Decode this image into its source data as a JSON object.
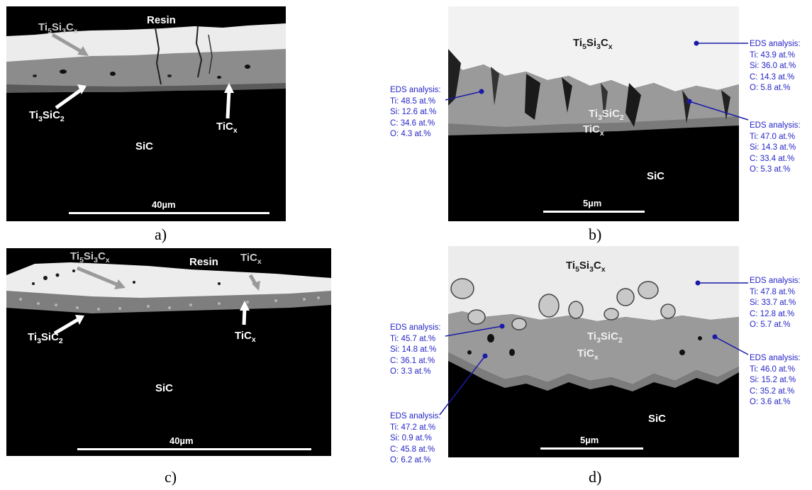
{
  "panels": {
    "a": {
      "caption": "a)",
      "labels": {
        "resin": "Resin",
        "ti5si3cx": "Ti5Si3Cx",
        "ti3sic2": "Ti3SiC2",
        "ticx": "TiCx",
        "sic": "SiC"
      },
      "scale_bar": "40µm"
    },
    "b": {
      "caption": "b)",
      "labels": {
        "ti5si3cx": "Ti5Si3Cx",
        "ti3sic2": "Ti3SiC2",
        "ticx": "TiCx",
        "sic": "SiC"
      },
      "scale_bar": "5µm",
      "eds": [
        {
          "title": "EDS analysis:",
          "lines": [
            "Ti: 48.5 at.%",
            "Si: 12.6 at.%",
            "C: 34.6 at.%",
            "O: 4.3 at.%"
          ]
        },
        {
          "title": "EDS analysis:",
          "lines": [
            "Ti: 43.9 at.%",
            "Si: 36.0 at.%",
            "C: 14.3 at.%",
            "O: 5.8 at.%"
          ]
        },
        {
          "title": "EDS analysis:",
          "lines": [
            "Ti: 47.0 at.%",
            "Si: 14.3 at.%",
            "C: 33.4 at.%",
            "O: 5.3 at.%"
          ]
        }
      ]
    },
    "c": {
      "caption": "c)",
      "labels": {
        "resin": "Resin",
        "ti5si3cx": "Ti5Si3Cx",
        "ticx_top": "TiCx",
        "ti3sic2": "Ti3SiC2",
        "ticx": "TiCx",
        "sic": "SiC"
      },
      "scale_bar": "40µm"
    },
    "d": {
      "caption": "d)",
      "labels": {
        "ti5si3cx": "Ti5Si3Cx",
        "ti3sic2": "Ti3SiC2",
        "ticx": "TiCx",
        "sic": "SiC"
      },
      "scale_bar": "5µm",
      "eds": [
        {
          "title": "EDS analysis:",
          "lines": [
            "Ti: 45.7 at.%",
            "Si: 14.8 at.%",
            "C: 36.1 at.%",
            "O: 3.3 at.%"
          ]
        },
        {
          "title": "EDS analysis:",
          "lines": [
            "Ti: 47.2 at.%",
            "Si: 0.9 at.%",
            "C: 45.8 at.%",
            "O: 6.2 at.%"
          ]
        },
        {
          "title": "EDS analysis:",
          "lines": [
            "Ti: 47.8 at.%",
            "Si: 33.7 at.%",
            "C: 12.8 at.%",
            "O: 5.7 at.%"
          ]
        },
        {
          "title": "EDS analysis:",
          "lines": [
            "Ti: 46.0 at.%",
            "Si: 15.2 at.%",
            "C: 35.2 at.%",
            "O: 3.6 at.%"
          ]
        }
      ]
    }
  },
  "colors": {
    "eds_text": "#2525c8",
    "marker": "#1a1aa8"
  }
}
